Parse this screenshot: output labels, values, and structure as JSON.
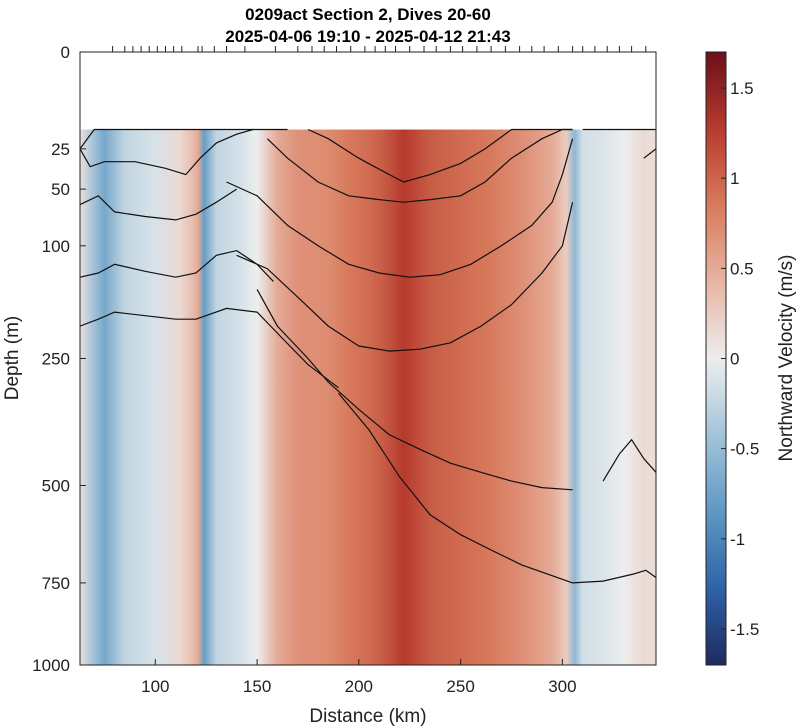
{
  "chart_data": {
    "type": "heatmap",
    "title": [
      "0209act Section 2, Dives 20-60",
      "2025-04-06 19:10 - 2025-04-12 21:43"
    ],
    "xlabel": "Distance (km)",
    "ylabel": "Depth (m)",
    "colorbar_label": "Northward Velocity (m/s)",
    "x_range": [
      63,
      346
    ],
    "y_range": [
      0,
      1000
    ],
    "y_scale": "sqrt",
    "color_range": [
      -1.7,
      1.7
    ],
    "data_top_depth": 16,
    "x_ticks": [
      100,
      150,
      200,
      250,
      300
    ],
    "y_ticks": [
      0,
      25,
      50,
      100,
      250,
      500,
      750,
      1000
    ],
    "colorbar_ticks": [
      1.5,
      1,
      0.5,
      0,
      -0.5,
      -1,
      -1.5
    ],
    "colormap": [
      "#1e2a5e",
      "#2f62a8",
      "#5f98c4",
      "#a3c4d9",
      "#eceeee",
      "#e8b4a2",
      "#d87a5c",
      "#b73b2e",
      "#6b0f1c"
    ],
    "velocity_profile": {
      "x": [
        63,
        70,
        75,
        85,
        100,
        112,
        118,
        121,
        124,
        130,
        140,
        150,
        160,
        170,
        185,
        195,
        205,
        212,
        222,
        235,
        250,
        265,
        280,
        295,
        302,
        306,
        310,
        320,
        330,
        340,
        346
      ],
      "v": [
        0.1,
        -0.45,
        -0.7,
        -0.25,
        -0.12,
        0.15,
        0.35,
        0.5,
        -0.8,
        -0.25,
        -0.15,
        0.0,
        0.5,
        0.68,
        0.72,
        0.85,
        0.95,
        1.05,
        1.28,
        1.05,
        0.95,
        0.85,
        0.7,
        0.5,
        0.25,
        -0.55,
        -0.15,
        -0.1,
        0.0,
        0.15,
        0.1
      ]
    },
    "isolines": [
      {
        "x": [
          63,
          70,
          78,
          90,
          110,
          118,
          125,
          140,
          152,
          158,
          165
        ],
        "y": [
          25,
          12,
          0,
          0,
          0,
          0,
          0,
          0,
          0,
          0,
          0
        ]
      },
      {
        "x": [
          63,
          68,
          75,
          90,
          105,
          115,
          122,
          130,
          140,
          148
        ],
        "y": [
          25,
          35,
          32,
          32,
          36,
          40,
          30,
          22,
          18,
          12
        ]
      },
      {
        "x": [
          63,
          72,
          80,
          95,
          110,
          120,
          130,
          140
        ],
        "y": [
          62,
          55,
          68,
          72,
          75,
          70,
          60,
          50
        ]
      },
      {
        "x": [
          63,
          72,
          80,
          95,
          110,
          120,
          130,
          140,
          150,
          158
        ],
        "y": [
          135,
          130,
          120,
          128,
          135,
          130,
          110,
          105,
          120,
          140
        ]
      },
      {
        "x": [
          63,
          72,
          80,
          95,
          110,
          120,
          135,
          150,
          163,
          175,
          190
        ],
        "y": [
          200,
          190,
          180,
          185,
          190,
          190,
          175,
          180,
          220,
          260,
          300
        ]
      },
      {
        "x": [
          175,
          185,
          200,
          215,
          222,
          235,
          250,
          262,
          275,
          290,
          300,
          305
        ],
        "y": [
          15,
          20,
          30,
          40,
          45,
          40,
          33,
          25,
          15,
          5,
          0,
          0
        ]
      },
      {
        "x": [
          155,
          165,
          180,
          195,
          210,
          222,
          235,
          250,
          262,
          275,
          290,
          300,
          305
        ],
        "y": [
          20,
          30,
          45,
          55,
          58,
          60,
          58,
          55,
          45,
          30,
          20,
          15,
          8
        ]
      },
      {
        "x": [
          135,
          150,
          165,
          180,
          195,
          210,
          225,
          240,
          255,
          270,
          285,
          295,
          300,
          305
        ],
        "y": [
          45,
          55,
          80,
          100,
          120,
          130,
          135,
          132,
          120,
          100,
          80,
          60,
          40,
          20
        ]
      },
      {
        "x": [
          140,
          155,
          170,
          185,
          200,
          215,
          230,
          245,
          260,
          275,
          290,
          300,
          305
        ],
        "y": [
          110,
          125,
          160,
          200,
          230,
          238,
          235,
          225,
          200,
          170,
          130,
          100,
          60
        ]
      },
      {
        "x": [
          150,
          160,
          175,
          185,
          200,
          215,
          230,
          245,
          260,
          275,
          290,
          305
        ],
        "y": [
          150,
          200,
          250,
          290,
          340,
          390,
          420,
          450,
          470,
          490,
          505,
          510
        ]
      },
      {
        "x": [
          190,
          205,
          220,
          235,
          250,
          265,
          280,
          295,
          305
        ],
        "y": [
          310,
          380,
          480,
          570,
          620,
          660,
          700,
          730,
          750
        ]
      },
      {
        "x": [
          310,
          320,
          330,
          336,
          340,
          346
        ],
        "y": [
          0,
          0,
          0,
          0,
          0,
          0
        ]
      },
      {
        "x": [
          340,
          346
        ],
        "y": [
          30,
          25
        ]
      },
      {
        "x": [
          320,
          328,
          334,
          340,
          346
        ],
        "y": [
          490,
          430,
          400,
          440,
          470
        ]
      },
      {
        "x": [
          305,
          320,
          335,
          341,
          346
        ],
        "y": [
          750,
          745,
          725,
          715,
          735
        ]
      }
    ],
    "dive_marker_x": [
      79,
      85,
      89,
      93,
      97,
      101,
      105,
      109,
      113,
      121,
      123,
      129,
      135,
      144,
      159,
      170,
      177,
      183,
      189,
      196,
      203,
      208,
      213,
      218,
      225,
      232,
      238,
      245,
      251,
      258,
      265,
      272,
      279,
      285,
      291,
      298,
      305,
      310,
      316,
      322,
      328,
      334,
      341
    ]
  }
}
